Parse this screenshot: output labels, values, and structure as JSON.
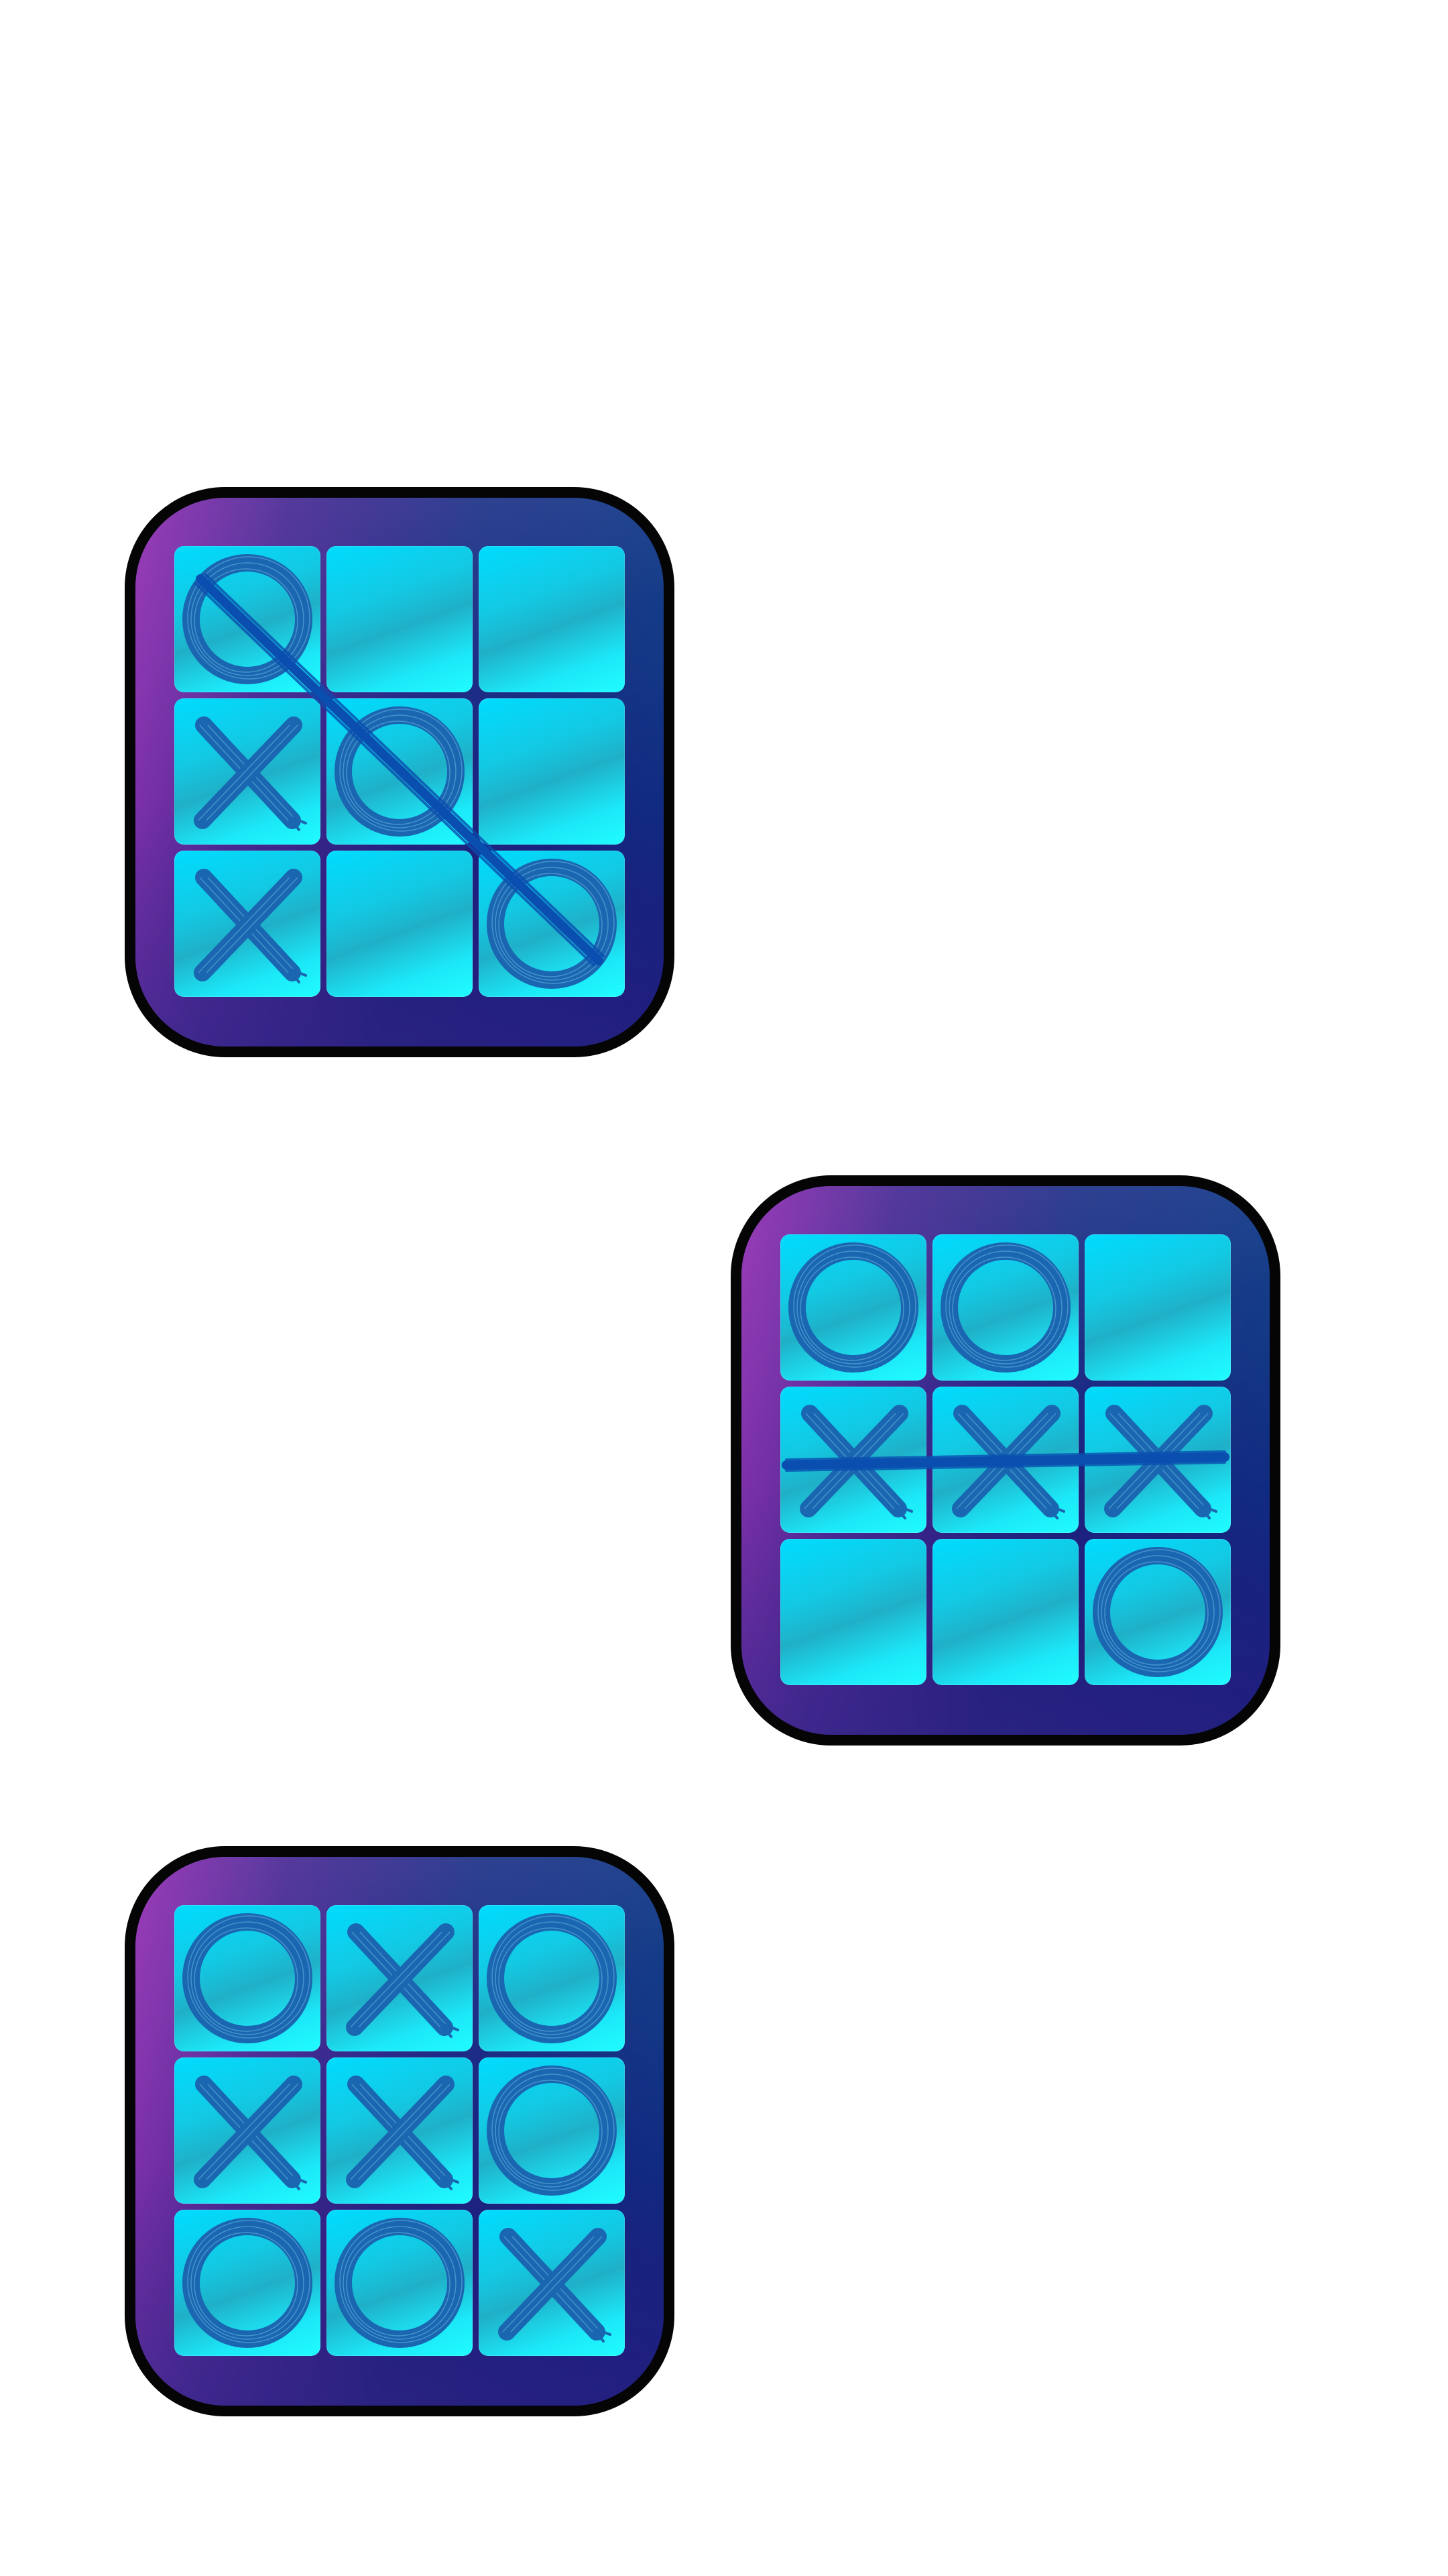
{
  "colors": {
    "mark": "#1a66b0",
    "strike": "#0a4fb0",
    "border": "#050505"
  },
  "icons": [
    {
      "cells": [
        "O",
        "",
        "",
        "X",
        "O",
        "",
        "X",
        "",
        "O"
      ],
      "winning_line": "diagonal-main"
    },
    {
      "cells": [
        "O",
        "O",
        "",
        "X",
        "X",
        "X",
        "",
        "",
        "O"
      ],
      "winning_line": "row-2"
    },
    {
      "cells": [
        "O",
        "X",
        "O",
        "X",
        "X",
        "O",
        "O",
        "O",
        "X"
      ],
      "winning_line": "none"
    }
  ]
}
